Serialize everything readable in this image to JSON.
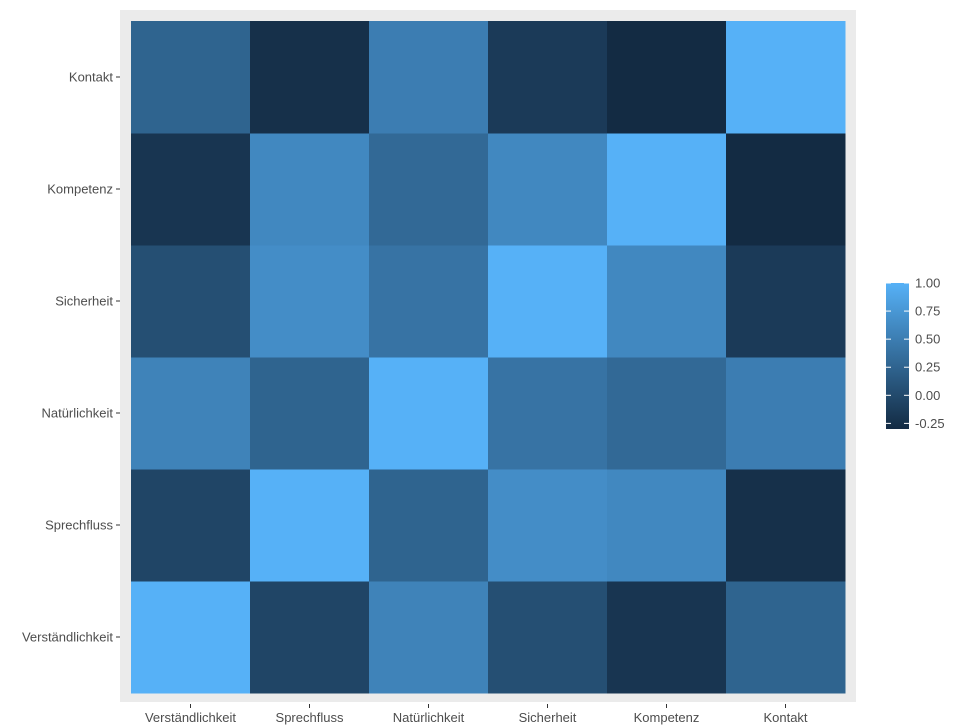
{
  "chart_data": {
    "type": "heatmap",
    "title": "",
    "xlabel": "",
    "ylabel": "",
    "x_categories": [
      "Verständlichkeit",
      "Sprechfluss",
      "Natürlichkeit",
      "Sicherheit",
      "Kompetenz",
      "Kontakt"
    ],
    "y_categories": [
      "Verständlichkeit",
      "Sprechfluss",
      "Natürlichkeit",
      "Sicherheit",
      "Kompetenz",
      "Kontakt"
    ],
    "values": [
      [
        1.0,
        -0.05,
        0.55,
        0.05,
        -0.2,
        0.25
      ],
      [
        -0.05,
        1.0,
        0.25,
        0.65,
        0.6,
        -0.25
      ],
      [
        0.55,
        0.25,
        1.0,
        0.4,
        0.3,
        0.5
      ],
      [
        0.05,
        0.65,
        0.4,
        1.0,
        0.6,
        -0.15
      ],
      [
        -0.2,
        0.6,
        0.3,
        0.6,
        1.0,
        -0.3
      ],
      [
        0.25,
        -0.25,
        0.5,
        -0.15,
        -0.3,
        1.0
      ]
    ],
    "color_scale": {
      "low": "#132B43",
      "high": "#56B1F7",
      "min": -0.3,
      "max": 1.0
    },
    "legend": {
      "position": "right",
      "ticks": [
        1.0,
        0.75,
        0.5,
        0.25,
        0.0,
        -0.25
      ],
      "tick_labels": [
        "1.00",
        "0.75",
        "0.50",
        "0.25",
        "0.00",
        "-0.25"
      ]
    },
    "panel_background": "#EBEBEB",
    "grid": false
  }
}
